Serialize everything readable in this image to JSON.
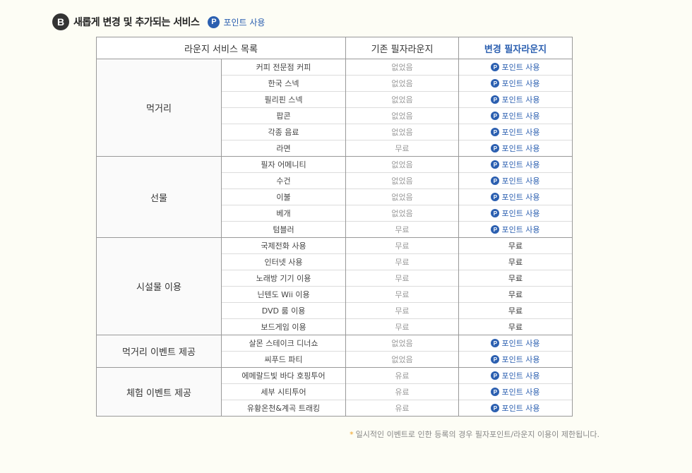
{
  "header": {
    "badge": "B",
    "title": "새롭게 변경 및 추가되는 서비스",
    "point_icon": "P",
    "point_label": "포인트 사용"
  },
  "table": {
    "columns": [
      "라운지 서비스 목록",
      "기존 필자라운지",
      "변경 필자라운지"
    ],
    "groups": [
      {
        "category": "먹거리",
        "rows": [
          {
            "service": "커피 전문점 커피",
            "old": "없었음",
            "new": "포인트 사용"
          },
          {
            "service": "한국 스넥",
            "old": "없었음",
            "new": "포인트 사용"
          },
          {
            "service": "필리핀 스넥",
            "old": "없었음",
            "new": "포인트 사용"
          },
          {
            "service": "팝콘",
            "old": "없었음",
            "new": "포인트 사용"
          },
          {
            "service": "각종 음료",
            "old": "없었음",
            "new": "포인트 사용"
          },
          {
            "service": "라면",
            "old": "무료",
            "new": "포인트 사용"
          }
        ]
      },
      {
        "category": "선물",
        "rows": [
          {
            "service": "필자 어메니티",
            "old": "없었음",
            "new": "포인트 사용"
          },
          {
            "service": "수건",
            "old": "없었음",
            "new": "포인트 사용"
          },
          {
            "service": "이불",
            "old": "없었음",
            "new": "포인트 사용"
          },
          {
            "service": "베개",
            "old": "없었음",
            "new": "포인트 사용"
          },
          {
            "service": "텀블러",
            "old": "무료",
            "new": "포인트 사용"
          }
        ]
      },
      {
        "category": "시설물 이용",
        "rows": [
          {
            "service": "국제전화 사용",
            "old": "무료",
            "new": "무료"
          },
          {
            "service": "인터넷 사용",
            "old": "무료",
            "new": "무료"
          },
          {
            "service": "노래방 기기 이용",
            "old": "무료",
            "new": "무료"
          },
          {
            "service": "닌텐도 Wii 이용",
            "old": "무료",
            "new": "무료"
          },
          {
            "service": "DVD 룸 이용",
            "old": "무료",
            "new": "무료"
          },
          {
            "service": "보드게임 이용",
            "old": "무료",
            "new": "무료"
          }
        ]
      },
      {
        "category": "먹거리 이벤트 제공",
        "rows": [
          {
            "service": "살몬 스테이크 디너쇼",
            "old": "없었음",
            "new": "포인트 사용"
          },
          {
            "service": "씨푸드 파티",
            "old": "없었음",
            "new": "포인트 사용"
          }
        ]
      },
      {
        "category": "체험 이벤트 제공",
        "rows": [
          {
            "service": "에메랄드빛 바다 호핑투어",
            "old": "유료",
            "new": "포인트 사용"
          },
          {
            "service": "세부 시티투어",
            "old": "유료",
            "new": "포인트 사용"
          },
          {
            "service": "유황온천&계곡 트래킹",
            "old": "유료",
            "new": "포인트 사용"
          }
        ]
      }
    ]
  },
  "footnote": {
    "star": "*",
    "text": "일시적인 이벤트로 인한 등록의 경우 필자포인트/라운지 이용이 제한됩니다."
  },
  "colors": {
    "accent": "#2b5fb0",
    "badge_dark": "#333333",
    "star": "#f0a020",
    "background": "#fdfdf5"
  }
}
